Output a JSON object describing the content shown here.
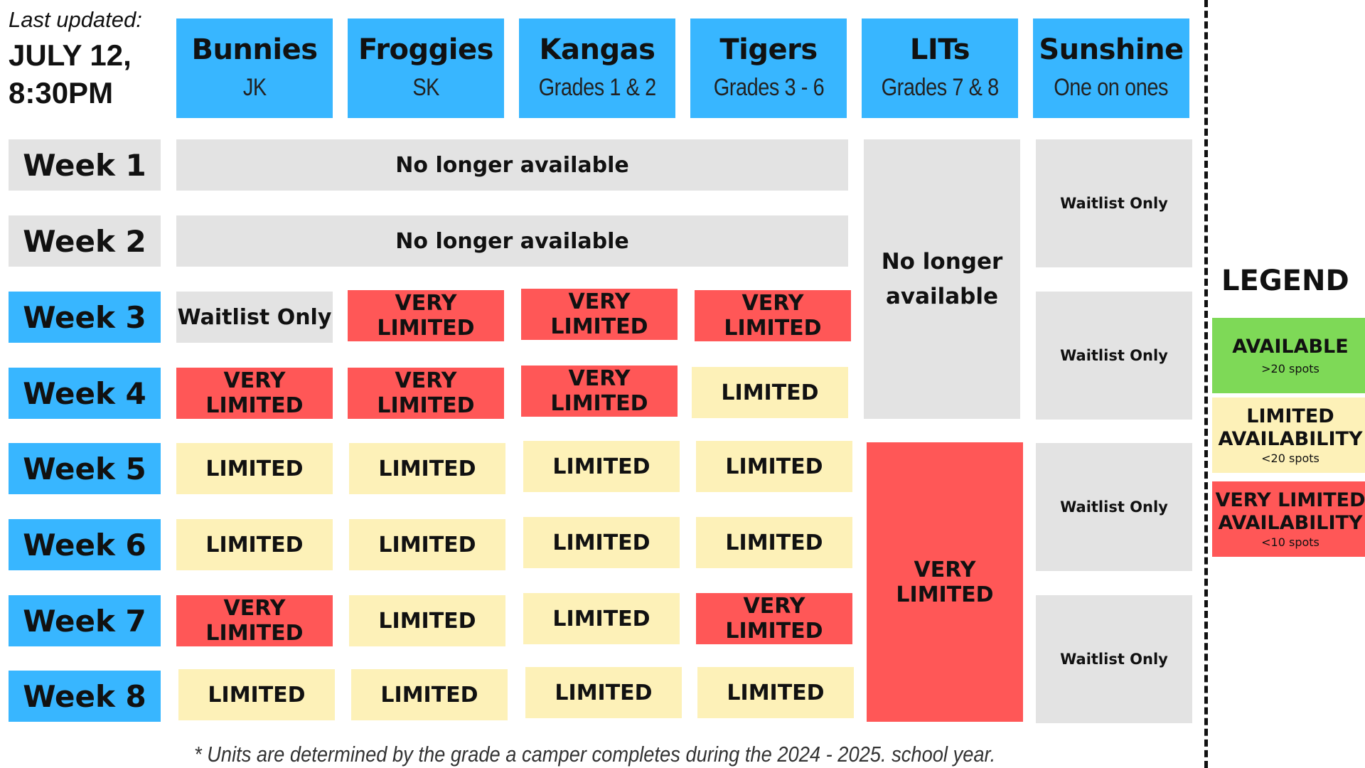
{
  "updated": {
    "label": "Last updated:",
    "date_line1": "JULY 12,",
    "date_line2": "8:30PM"
  },
  "units": [
    {
      "name": "Bunnies",
      "sub": "JK"
    },
    {
      "name": "Froggies",
      "sub": "SK"
    },
    {
      "name": "Kangas",
      "sub": "Grades 1 & 2"
    },
    {
      "name": "Tigers",
      "sub": "Grades 3 - 6"
    },
    {
      "name": "LITs",
      "sub": "Grades 7 & 8"
    },
    {
      "name": "Sunshine",
      "sub": "One on ones"
    }
  ],
  "weeks": [
    "Week 1",
    "Week 2",
    "Week 3",
    "Week 4",
    "Week 5",
    "Week 6",
    "Week 7",
    "Week 8"
  ],
  "rows_1_2": {
    "week1": "No longer available",
    "week2": "No longer available"
  },
  "grid": {
    "w3": [
      "Waitlist Only",
      "VERY LIMITED",
      "VERY LIMITED",
      "VERY LIMITED"
    ],
    "w4": [
      "VERY LIMITED",
      "VERY LIMITED",
      "VERY LIMITED",
      "LIMITED"
    ],
    "w5": [
      "LIMITED",
      "LIMITED",
      "LIMITED",
      "LIMITED"
    ],
    "w6": [
      "LIMITED",
      "LIMITED",
      "LIMITED",
      "LIMITED"
    ],
    "w7": [
      "VERY LIMITED",
      "LIMITED",
      "LIMITED",
      "VERY LIMITED"
    ],
    "w8": [
      "LIMITED",
      "LIMITED",
      "LIMITED",
      "LIMITED"
    ]
  },
  "lits": {
    "top_line1": "No longer",
    "top_line2": "available",
    "bottom": "VERY LIMITED"
  },
  "sunshine": {
    "b1": "Waitlist Only",
    "b2": "Waitlist Only",
    "b3": "Waitlist Only",
    "b4": "Waitlist Only"
  },
  "legend": {
    "title": "LEGEND",
    "available": {
      "label": "AVAILABLE",
      "sub": ">20 spots"
    },
    "limited": {
      "line1": "LIMITED",
      "line2": "AVAILABILITY",
      "sub": "<20 spots"
    },
    "very_limited": {
      "line1": "VERY LIMITED",
      "line2": "AVAILABILITY",
      "sub": "<10 spots"
    }
  },
  "footnote": "* Units are determined by the grade a camper completes during the 2024 - 2025. school year.",
  "colors": {
    "blue": "#38b6ff",
    "grey": "#e3e3e3",
    "red": "#ff5757",
    "yellow": "#fdf1b8",
    "green": "#7ed957"
  }
}
